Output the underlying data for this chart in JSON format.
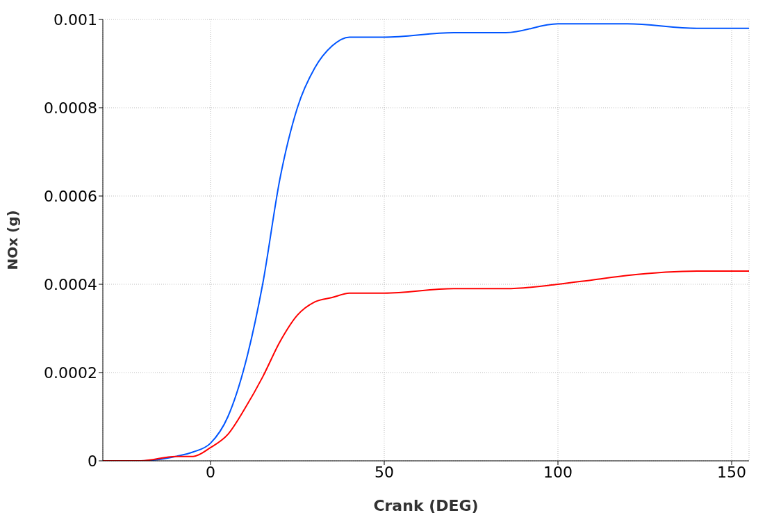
{
  "chart_data": {
    "type": "line",
    "xlabel": "Crank (DEG)",
    "ylabel": "NOx (g)",
    "x": [
      -31,
      -20,
      -10,
      -5,
      0,
      5,
      10,
      15,
      20,
      25,
      30,
      35,
      40,
      50,
      70,
      85,
      100,
      110,
      120,
      140,
      155
    ],
    "series": [
      {
        "color": "#0055ff",
        "values": [
          0,
          0,
          1e-05,
          2e-05,
          4e-05,
          0.0001,
          0.00022,
          0.0004,
          0.00064,
          0.0008,
          0.00089,
          0.00094,
          0.00096,
          0.00096,
          0.00097,
          0.00097,
          0.00099,
          0.00099,
          0.00099,
          0.00098,
          0.00098
        ]
      },
      {
        "color": "#ff0000",
        "values": [
          0,
          0,
          1e-05,
          1e-05,
          3e-05,
          6e-05,
          0.00012,
          0.00019,
          0.00027,
          0.00033,
          0.00036,
          0.00037,
          0.00038,
          0.00038,
          0.00039,
          0.00039,
          0.0004,
          0.00041,
          0.00042,
          0.00043,
          0.00043
        ]
      }
    ],
    "xlim": [
      -31,
      155
    ],
    "xticks": [
      0,
      50,
      100,
      150
    ],
    "ylim": [
      0,
      0.001
    ],
    "yticks": [
      0,
      0.0002,
      0.0004,
      0.0006,
      0.0008,
      0.001
    ],
    "grid": true,
    "marker": "none",
    "line_style": "solid",
    "legend": false
  }
}
